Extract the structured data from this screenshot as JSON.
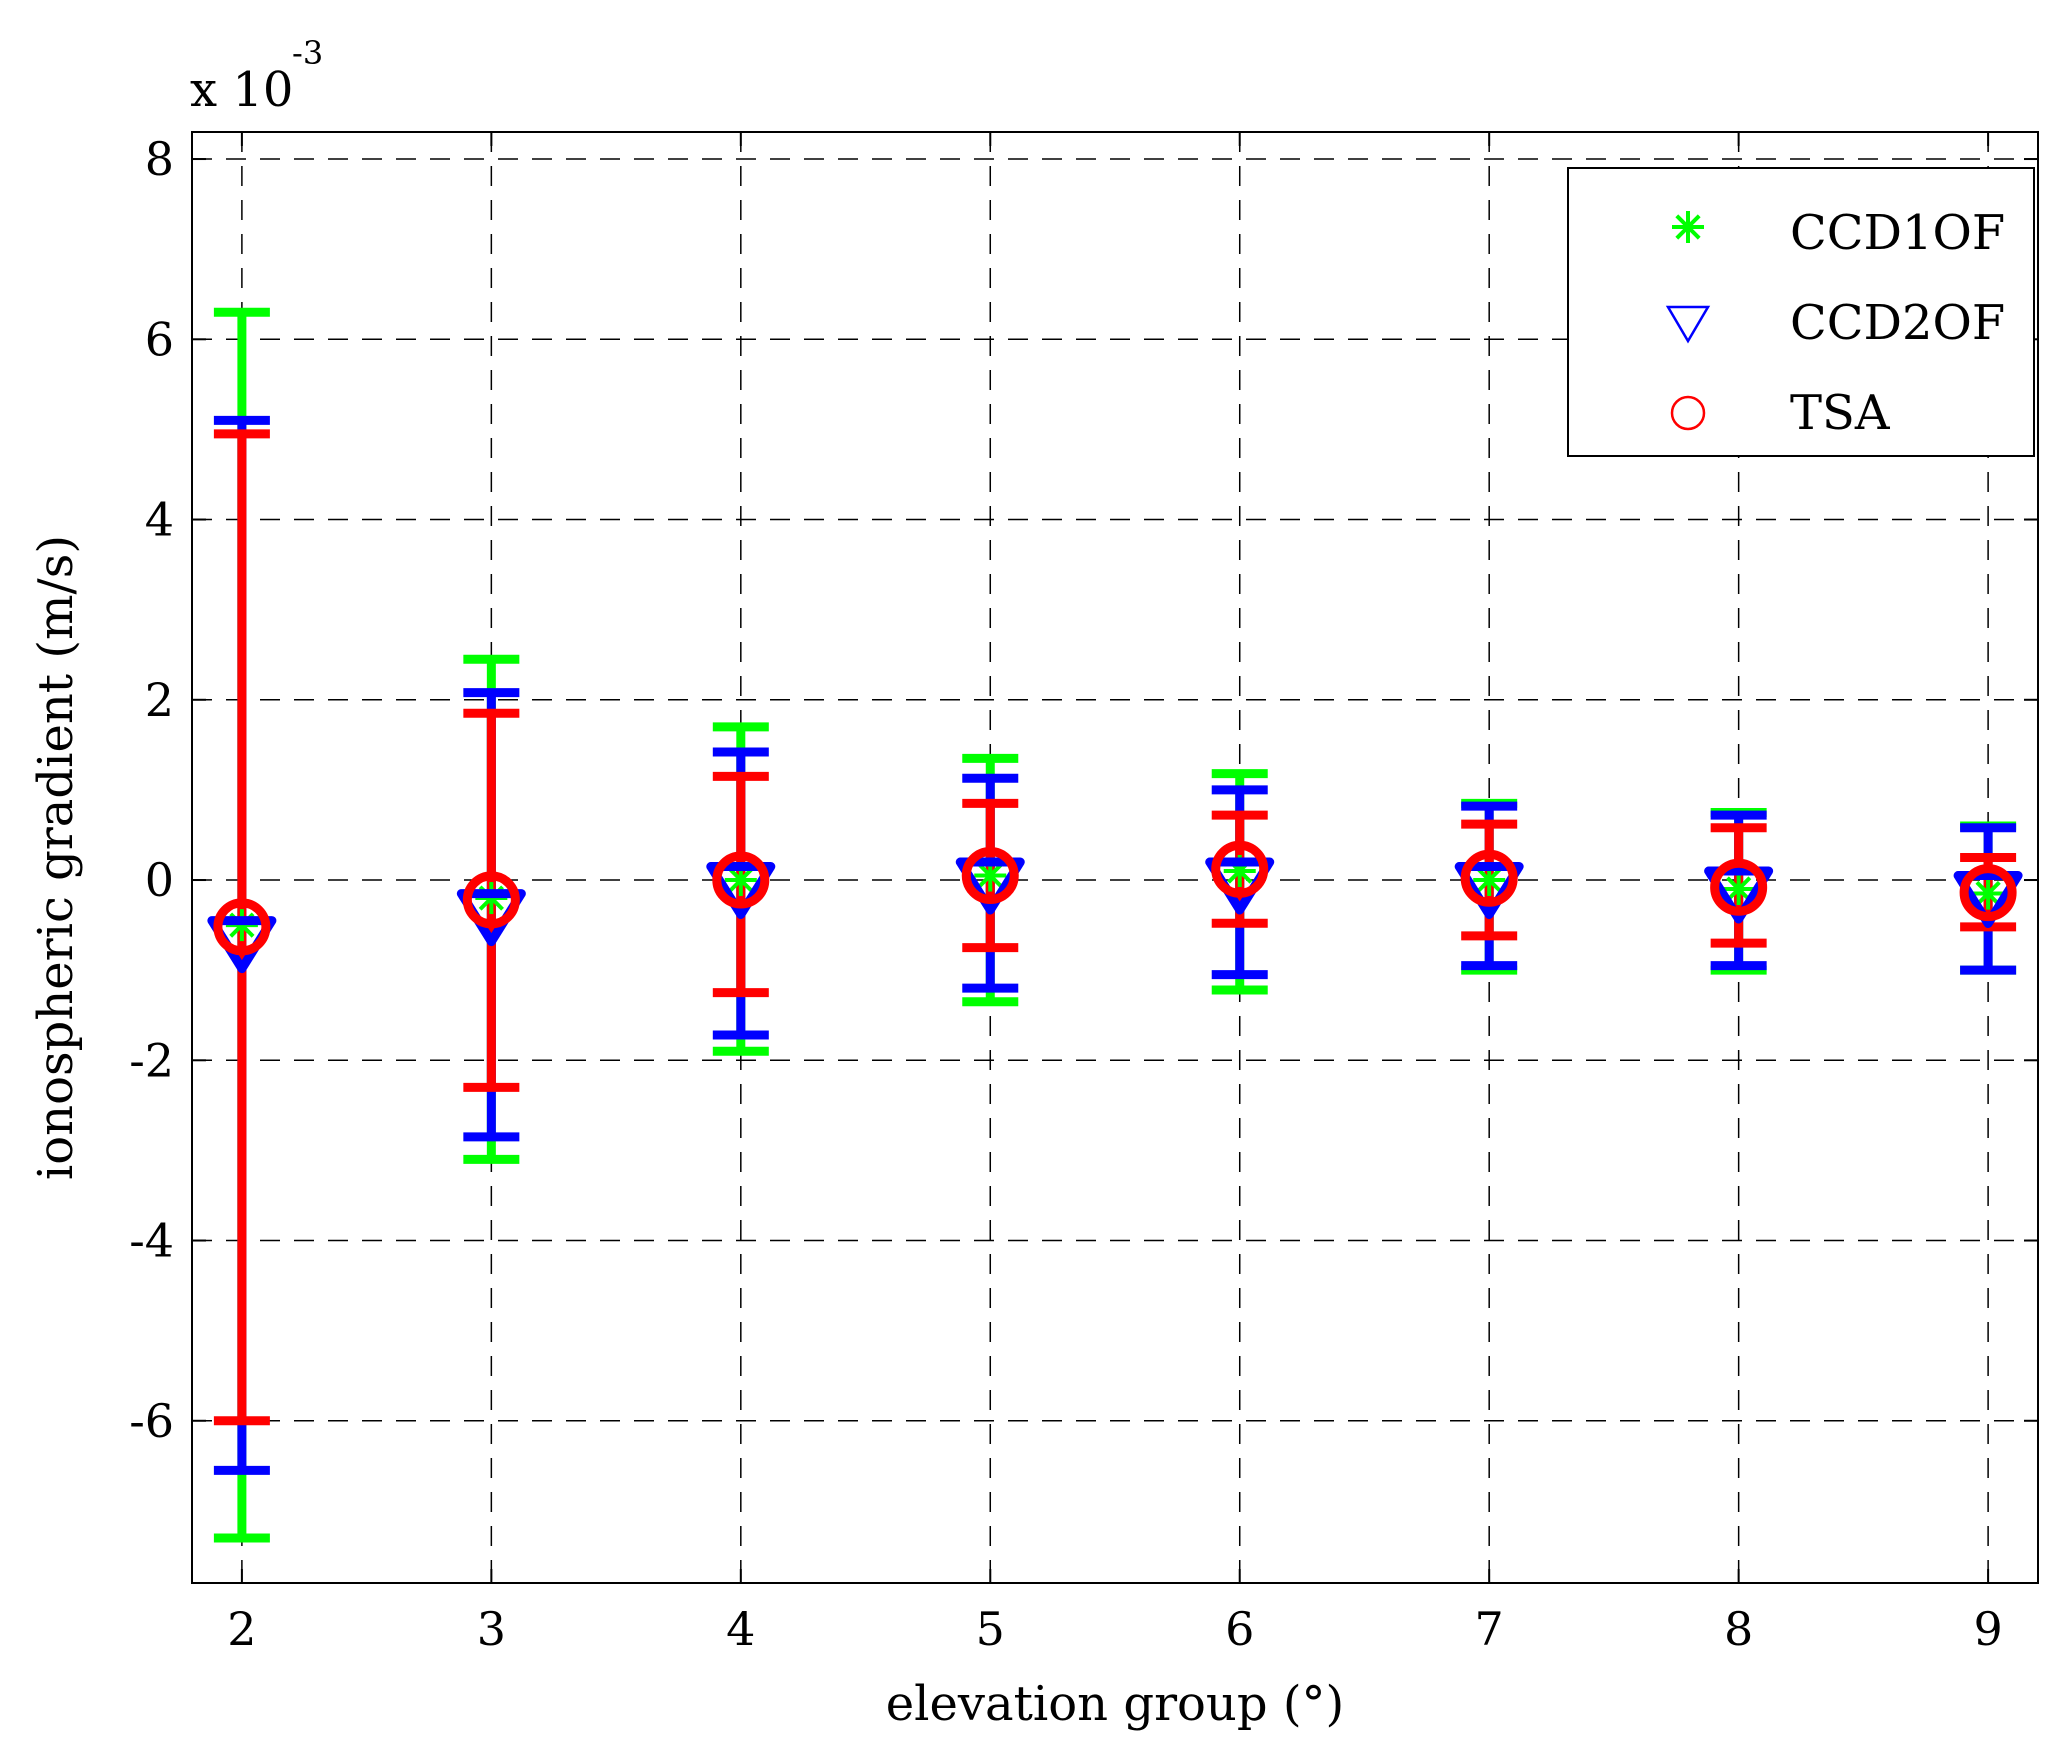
{
  "chart_data": {
    "type": "errorbar",
    "title": "",
    "xlabel": "elevation group (°)",
    "ylabel": "ionospheric gradient (m/s)",
    "y_scale_label": "x 10",
    "y_scale_exponent": "-3",
    "xlim": [
      1.8,
      9.2
    ],
    "ylim": [
      -7.8,
      8.3
    ],
    "xticks": [
      2,
      3,
      4,
      5,
      6,
      7,
      8,
      9
    ],
    "yticks": [
      -6,
      -4,
      -2,
      0,
      2,
      4,
      6,
      8
    ],
    "xtick_labels": [
      "2",
      "3",
      "4",
      "5",
      "6",
      "7",
      "8",
      "9"
    ],
    "ytick_labels": [
      "-6",
      "-4",
      "-2",
      "0",
      "2",
      "4",
      "6",
      "8"
    ],
    "grid": true,
    "legend_position": "top-right",
    "series": [
      {
        "name": "CCD1OF",
        "color": "#00ff00",
        "marker": "asterisk",
        "x": [
          2,
          3,
          4,
          5,
          6,
          7,
          8,
          9
        ],
        "mean": [
          -0.5,
          -0.2,
          0.0,
          0.05,
          0.1,
          0.0,
          -0.1,
          -0.15
        ],
        "upper": [
          6.3,
          2.45,
          1.7,
          1.35,
          1.18,
          0.85,
          0.75,
          0.6
        ],
        "lower": [
          -7.3,
          -3.1,
          -1.9,
          -1.35,
          -1.22,
          -1.0,
          -1.0,
          -1.0
        ]
      },
      {
        "name": "CCD2OF",
        "color": "#0000ff",
        "marker": "triangle-down",
        "x": [
          2,
          3,
          4,
          5,
          6,
          7,
          8,
          9
        ],
        "mean": [
          -0.65,
          -0.35,
          -0.05,
          0.0,
          0.0,
          -0.05,
          -0.1,
          -0.15
        ],
        "upper": [
          5.1,
          2.08,
          1.42,
          1.13,
          1.0,
          0.82,
          0.72,
          0.58
        ],
        "lower": [
          -6.55,
          -2.85,
          -1.72,
          -1.2,
          -1.05,
          -0.95,
          -0.95,
          -1.0
        ]
      },
      {
        "name": "TSA",
        "color": "#ff0000",
        "marker": "circle",
        "x": [
          2,
          3,
          4,
          5,
          6,
          7,
          8,
          9
        ],
        "mean": [
          -0.52,
          -0.22,
          0.0,
          0.05,
          0.12,
          0.02,
          -0.08,
          -0.14
        ],
        "upper": [
          4.95,
          1.85,
          1.15,
          0.85,
          0.72,
          0.62,
          0.58,
          0.25
        ],
        "lower": [
          -6.0,
          -2.3,
          -1.25,
          -0.75,
          -0.48,
          -0.62,
          -0.7,
          -0.52
        ]
      }
    ]
  }
}
